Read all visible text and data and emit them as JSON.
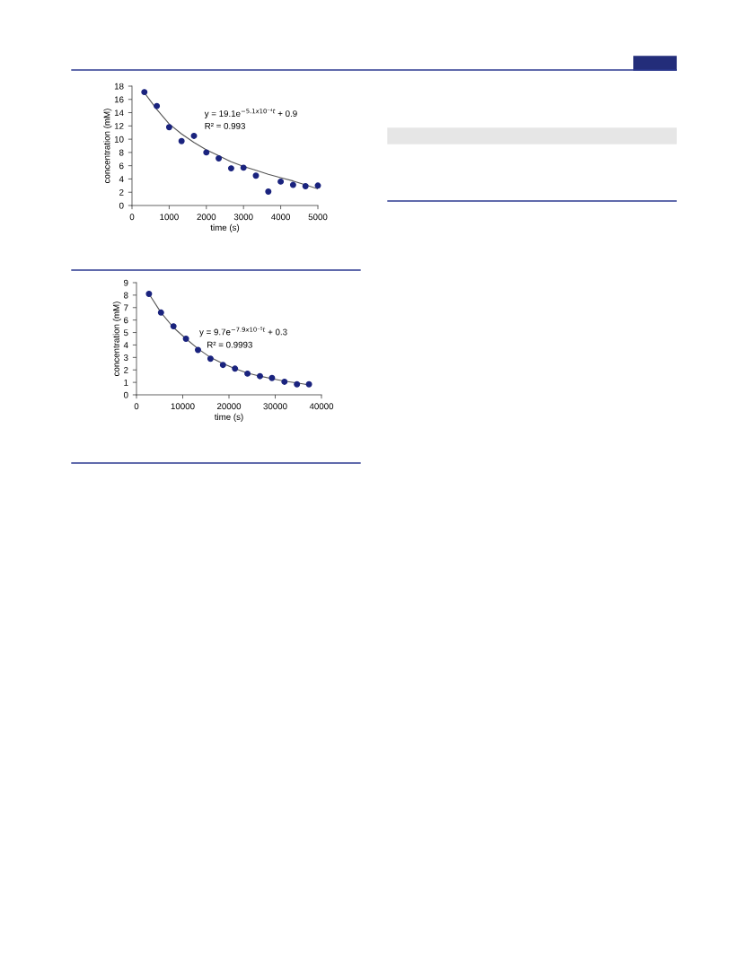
{
  "chart_data": [
    {
      "type": "scatter",
      "xlabel": "time (s)",
      "ylabel": "concentration (mM)",
      "xlim": [
        0,
        5000
      ],
      "xticks": [
        0,
        1000,
        2000,
        3000,
        4000,
        5000
      ],
      "ylim": [
        0,
        18
      ],
      "yticks": [
        0,
        2,
        4,
        6,
        8,
        10,
        12,
        14,
        16,
        18
      ],
      "grid": false,
      "legend": false,
      "annotations": [
        "y = 19.1e$^{−5.1x10⁻⁴t}$ + 0.9",
        "R² = 0.993"
      ],
      "series": [
        {
          "marker": "circle",
          "color": "#1a237e",
          "x": [
            333,
            667,
            1000,
            1333,
            1667,
            2000,
            2333,
            2667,
            3000,
            3333,
            3667,
            4000,
            4333,
            4667,
            5000
          ],
          "values": [
            17.1,
            15.0,
            11.8,
            9.7,
            10.5,
            8.0,
            7.1,
            5.6,
            5.7,
            4.5,
            2.1,
            3.6,
            3.1,
            2.9,
            3.0
          ]
        },
        {
          "type": "line",
          "color": "#555555",
          "line_style": "solid",
          "x": [
            333,
            667,
            1000,
            1333,
            1667,
            2000,
            2333,
            2667,
            3000,
            3333,
            3667,
            4000,
            4333,
            4667,
            5000
          ],
          "values": [
            17.0,
            14.5,
            12.3,
            10.8,
            9.5,
            8.4,
            7.5,
            6.6,
            5.9,
            5.3,
            4.7,
            4.2,
            3.7,
            3.1,
            2.5
          ]
        }
      ]
    },
    {
      "type": "scatter",
      "xlabel": "time (s)",
      "ylabel": "concentration (mM)",
      "xlim": [
        0,
        40000
      ],
      "xticks": [
        0,
        10000,
        20000,
        30000,
        40000
      ],
      "ylim": [
        0,
        9
      ],
      "yticks": [
        0,
        1,
        2,
        3,
        4,
        5,
        6,
        7,
        8,
        9
      ],
      "grid": false,
      "legend": false,
      "annotations": [
        "y = 9.7e$^{−7.9x10⁻⁵t}$ + 0.3",
        "R² = 0.9993"
      ],
      "series": [
        {
          "marker": "circle",
          "color": "#1a237e",
          "x": [
            2700,
            5300,
            8000,
            10700,
            13300,
            16000,
            18700,
            21300,
            24000,
            26700,
            29300,
            32000,
            34700,
            37300
          ],
          "values": [
            8.1,
            6.6,
            5.5,
            4.5,
            3.6,
            2.9,
            2.4,
            2.1,
            1.7,
            1.5,
            1.35,
            1.05,
            0.85,
            0.85
          ]
        },
        {
          "type": "line",
          "color": "#555555",
          "line_style": "solid",
          "x": [
            2700,
            5300,
            8000,
            10700,
            13300,
            16000,
            18700,
            21300,
            24000,
            26700,
            29300,
            32000,
            34700,
            37300
          ],
          "values": [
            8.1,
            6.6,
            5.4,
            4.5,
            3.7,
            3.0,
            2.5,
            2.1,
            1.75,
            1.5,
            1.3,
            1.1,
            0.95,
            0.8
          ]
        }
      ]
    }
  ]
}
